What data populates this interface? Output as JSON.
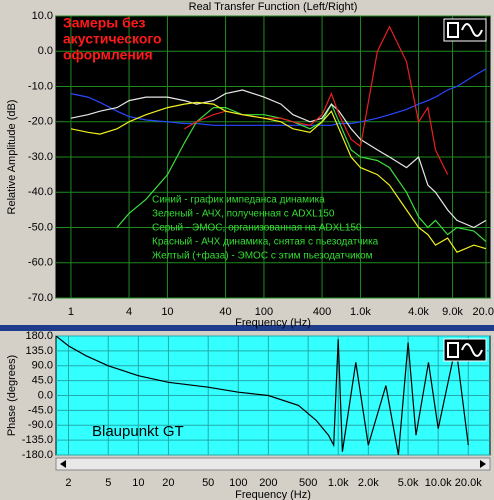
{
  "chart_data": [
    {
      "type": "line",
      "title": "Real Transfer Function (Left/Right)",
      "x_label": "Frequency (Hz)",
      "y_label": "Relative Amplitude (dB)",
      "xlog": true,
      "grid": true,
      "background": "#000000",
      "grid_color": "#1f8a1f",
      "xlim": [
        0.7,
        22000
      ],
      "xticks": [
        1,
        4,
        10,
        40,
        100,
        400,
        {
          "value": 1000,
          "label": "1.0k"
        },
        {
          "value": 4000,
          "label": "4.0k"
        },
        {
          "value": 9000,
          "label": "9.0k"
        },
        {
          "value": 20000,
          "label": "20.0k"
        }
      ],
      "ylim": [
        -70,
        10
      ],
      "yticks": [
        {
          "value": 10,
          "label": "10.0"
        },
        {
          "value": 0,
          "label": "0.0"
        },
        {
          "value": -10,
          "label": "-10.0"
        },
        {
          "value": -20,
          "label": "-20.0"
        },
        {
          "value": -30,
          "label": "-30.0"
        },
        {
          "value": -40,
          "label": "-40.0"
        },
        {
          "value": -50,
          "label": "-50.0"
        },
        {
          "value": -60,
          "label": "-60.0"
        },
        {
          "value": -70,
          "label": "-70.0"
        }
      ],
      "x": [
        1,
        1.5,
        2,
        3,
        4,
        6,
        10,
        15,
        20,
        30,
        40,
        60,
        100,
        150,
        200,
        300,
        400,
        500,
        600,
        800,
        1000,
        1500,
        2000,
        3000,
        4000,
        5000,
        6000,
        8000,
        10000,
        15000,
        20000
      ],
      "series": [
        {
          "name": "Синий - график импеданса динамика",
          "color": "#2848ff",
          "values": [
            -12,
            -13,
            -14.5,
            -17,
            -18.5,
            -19.5,
            -20,
            -20.5,
            -20.5,
            -21,
            -21,
            -21,
            -21,
            -21,
            -21,
            -21,
            -21,
            -21,
            -20.5,
            -20.5,
            -20,
            -19,
            -18,
            -16.5,
            -15,
            -14,
            -13,
            -11,
            -10,
            -7,
            -5
          ]
        },
        {
          "name": "Зеленый - АЧХ, полученная с ADXL150",
          "color": "#3cdc3c",
          "values": [
            null,
            null,
            null,
            -50,
            -46,
            -42,
            -35,
            -26,
            -20,
            -16,
            -16,
            -18,
            -18,
            -19,
            -20,
            -22,
            -20,
            -15,
            -20,
            -28,
            -30,
            -31,
            -33,
            -40,
            -47,
            -50,
            -48,
            -52,
            -50,
            -51,
            -54
          ]
        },
        {
          "name": "Серый - ЭМОС, организованная на ADXL150",
          "color": "#e8e8e8",
          "values": [
            -19,
            -18,
            -17,
            -16,
            -14,
            -13,
            -13,
            -14,
            -15,
            -14,
            -12,
            -11,
            -13,
            -15,
            -18,
            -20,
            -19,
            -15,
            -17,
            -22,
            -25,
            -28,
            -30,
            -33,
            -30,
            -38,
            -40,
            -45,
            -48,
            -50,
            -48
          ]
        },
        {
          "name": "Красный - АЧХ динамика, снятая с пьезодатчика",
          "color": "#e82020",
          "values": [
            null,
            null,
            null,
            null,
            null,
            null,
            null,
            -22,
            -20,
            -18,
            -17,
            -18,
            -19,
            -19,
            -20,
            -21,
            -18,
            -12,
            -18,
            -25,
            -27,
            0,
            7,
            -3,
            -20,
            -16,
            -28,
            -35,
            null,
            null,
            null
          ]
        },
        {
          "name": "Желтый (+фаза) - ЭМОС с этим пьезодатчиком",
          "color": "#f0f020",
          "values": [
            -22,
            -23,
            -23.5,
            -22,
            -20,
            -18,
            -16,
            -15,
            -14.5,
            -15,
            -17,
            -18,
            -19,
            -20,
            -22,
            -23,
            -20,
            -17,
            -22,
            -30,
            -33,
            -35,
            -38,
            -45,
            -50,
            -52,
            -55,
            -53,
            -57,
            -55,
            -56
          ]
        }
      ],
      "annotations": [
        "Замеры без",
        "акустического",
        "оформления"
      ]
    },
    {
      "type": "line",
      "x_label": "Frequency (Hz)",
      "y_label": "Phase (degrees)",
      "xlog": true,
      "grid": true,
      "background": "#33ffff",
      "grid_color": "#22aaaa",
      "xlim": [
        1.5,
        33000
      ],
      "xticks": [
        2,
        5,
        10,
        20,
        50,
        100,
        200,
        500,
        {
          "value": 1000,
          "label": "1.0k"
        },
        {
          "value": 2000,
          "label": "2.0k"
        },
        {
          "value": 5000,
          "label": "5.0k"
        },
        {
          "value": 10000,
          "label": "10.0k"
        },
        {
          "value": 20000,
          "label": "20.0k"
        }
      ],
      "ylim": [
        -180,
        180
      ],
      "yticks": [
        {
          "value": 180,
          "label": "180.0"
        },
        {
          "value": 135,
          "label": "135.0"
        },
        {
          "value": 90,
          "label": "90.0"
        },
        {
          "value": 45,
          "label": "45.0"
        },
        {
          "value": 0,
          "label": "0.0"
        },
        {
          "value": -45,
          "label": "-45.0"
        },
        {
          "value": -90,
          "label": "-90.0"
        },
        {
          "value": -135,
          "label": "-135.0"
        },
        {
          "value": -180,
          "label": "-180.0"
        }
      ],
      "x": [
        1.5,
        2,
        3,
        5,
        10,
        20,
        50,
        100,
        200,
        400,
        600,
        800,
        900,
        1000,
        1100,
        1500,
        2000,
        3000,
        4000,
        5000,
        6000,
        8000,
        10000,
        15000,
        20000
      ],
      "values": [
        180,
        150,
        120,
        90,
        60,
        40,
        25,
        10,
        0,
        -30,
        -75,
        -120,
        -150,
        170,
        -170,
        100,
        -150,
        30,
        -180,
        160,
        -120,
        100,
        -100,
        150,
        -150
      ],
      "color": "#000000",
      "annotations": [
        "Blaupunkt GT"
      ]
    }
  ]
}
